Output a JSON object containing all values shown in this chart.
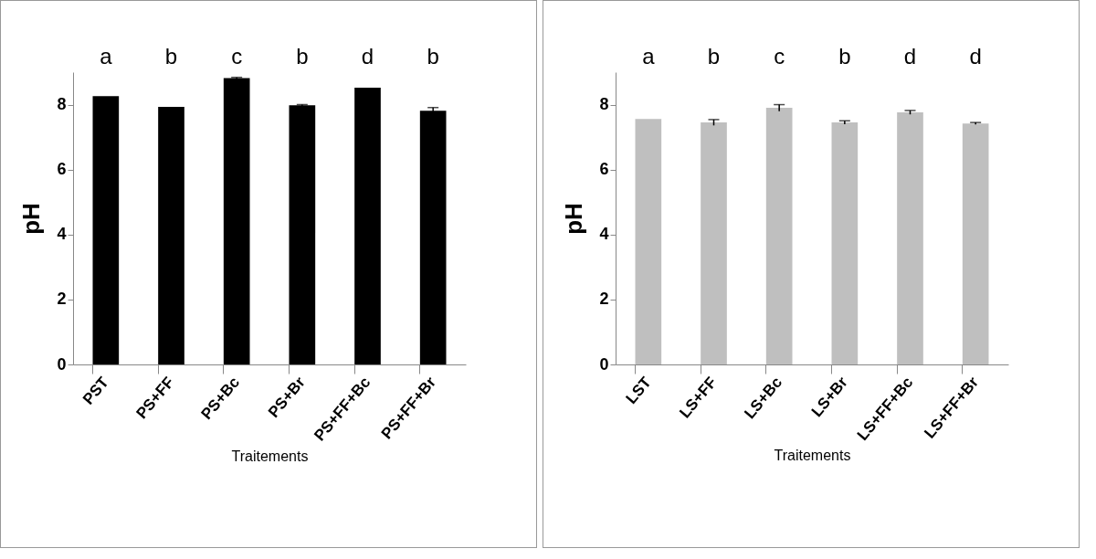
{
  "chart_data": [
    {
      "type": "bar",
      "categories": [
        "PST",
        "PS+FF",
        "PS+Bc",
        "PS+Br",
        "PS+FF+Bc",
        "PS+FF+Br"
      ],
      "values": [
        8.26,
        7.93,
        8.82,
        7.98,
        8.52,
        7.81
      ],
      "errors": [
        null,
        null,
        0.02,
        0.02,
        null,
        0.1
      ],
      "color": "#000000",
      "xlabel": "Traitements",
      "ylabel": "pH",
      "ylim": [
        0,
        9
      ],
      "yticks": [
        0,
        2,
        4,
        6,
        8
      ],
      "grid": false,
      "annotations": [
        "a",
        "b",
        "c",
        "b",
        "d",
        "b"
      ]
    },
    {
      "type": "bar",
      "categories": [
        "LST",
        "LS+FF",
        "LS+Bc",
        "LS+Br",
        "LS+FF+Bc",
        "LS+FF+Br"
      ],
      "values": [
        7.56,
        7.45,
        7.9,
        7.45,
        7.76,
        7.42
      ],
      "errors": [
        null,
        0.09,
        0.1,
        0.05,
        0.06,
        0.03
      ],
      "color": "#bfbfbf",
      "xlabel": "Traitements",
      "ylabel": "pH",
      "ylim": [
        0,
        9
      ],
      "yticks": [
        0,
        2,
        4,
        6,
        8
      ],
      "grid": false,
      "annotations": [
        "a",
        "b",
        "c",
        "b",
        "d",
        "d"
      ]
    }
  ]
}
